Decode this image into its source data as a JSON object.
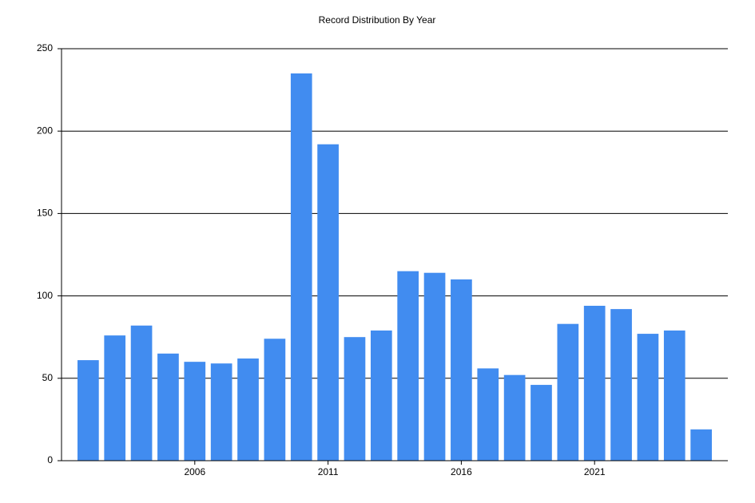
{
  "chart_data": {
    "type": "bar",
    "title": "Record Distribution By Year",
    "x": [
      2002,
      2003,
      2004,
      2005,
      2006,
      2007,
      2008,
      2009,
      2010,
      2011,
      2012,
      2013,
      2014,
      2015,
      2016,
      2017,
      2018,
      2019,
      2020,
      2021,
      2022,
      2023,
      2024,
      2025
    ],
    "values": [
      61,
      76,
      82,
      65,
      60,
      59,
      62,
      74,
      235,
      192,
      75,
      79,
      115,
      114,
      110,
      56,
      52,
      46,
      83,
      94,
      92,
      77,
      79,
      19
    ],
    "color": "#418cf0",
    "xlim": [
      2001,
      2026
    ],
    "xticks": [
      2006,
      2011,
      2016,
      2021
    ],
    "ylim": [
      0,
      250
    ],
    "yticks": [
      0,
      50,
      100,
      150,
      200,
      250
    ],
    "grid": true
  }
}
